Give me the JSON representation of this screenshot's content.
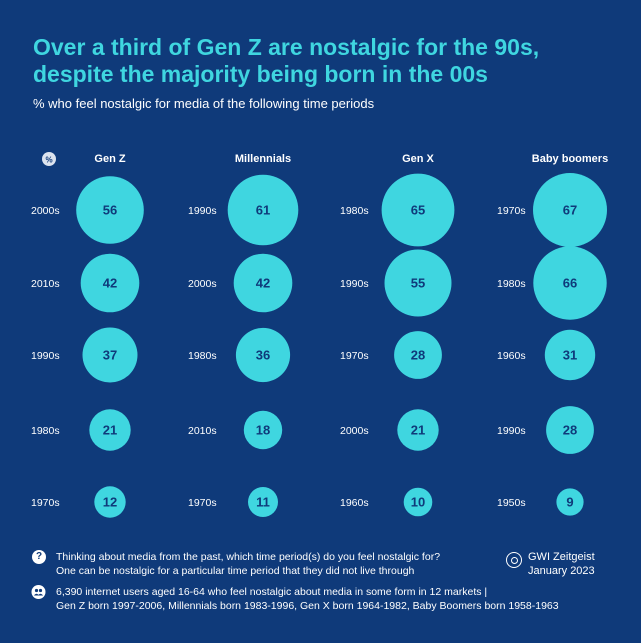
{
  "title": "Over a third of Gen Z are nostalgic for the 90s, despite the majority being born in the 00s",
  "subtitle": "% who feel nostalgic for media of the following time periods",
  "percent_badge": "%",
  "colors": {
    "background": "#0f3a7a",
    "accent": "#3fd6e0",
    "bubble_text": "#0f3a7a"
  },
  "chart_data": {
    "type": "bubble",
    "unit": "%",
    "groups": [
      {
        "name": "Gen Z",
        "rows": [
          {
            "label": "2000s",
            "value": 56
          },
          {
            "label": "2010s",
            "value": 42
          },
          {
            "label": "1990s",
            "value": 37
          },
          {
            "label": "1980s",
            "value": 21
          },
          {
            "label": "1970s",
            "value": 12
          }
        ]
      },
      {
        "name": "Millennials",
        "rows": [
          {
            "label": "1990s",
            "value": 61
          },
          {
            "label": "2000s",
            "value": 42
          },
          {
            "label": "1980s",
            "value": 36
          },
          {
            "label": "2010s",
            "value": 18
          },
          {
            "label": "1970s",
            "value": 11
          }
        ]
      },
      {
        "name": "Gen X",
        "rows": [
          {
            "label": "1980s",
            "value": 65
          },
          {
            "label": "1990s",
            "value": 55
          },
          {
            "label": "1970s",
            "value": 28
          },
          {
            "label": "2000s",
            "value": 21
          },
          {
            "label": "1960s",
            "value": 10
          }
        ]
      },
      {
        "name": "Baby boomers",
        "rows": [
          {
            "label": "1970s",
            "value": 67
          },
          {
            "label": "1980s",
            "value": 66
          },
          {
            "label": "1960s",
            "value": 31
          },
          {
            "label": "1990s",
            "value": 28
          },
          {
            "label": "1950s",
            "value": 9
          }
        ]
      }
    ]
  },
  "footer": {
    "question_icon": "?",
    "question": "Thinking about media from the past, which time period(s) do you feel nostalgic for?",
    "question_note": "One can be nostalgic for a particular time period that they did not live through",
    "sample_icon": "people-icon",
    "sample_line1": "6,390 internet users aged 16-64 who feel nostalgic about media in some form in 12 markets |",
    "sample_line2": "Gen Z born 1997-2006, Millennials born 1983-1996, Gen X born 1964-1982, Baby Boomers born 1958-1963",
    "brand": "GWI Zeitgeist",
    "date": "January 2023"
  }
}
